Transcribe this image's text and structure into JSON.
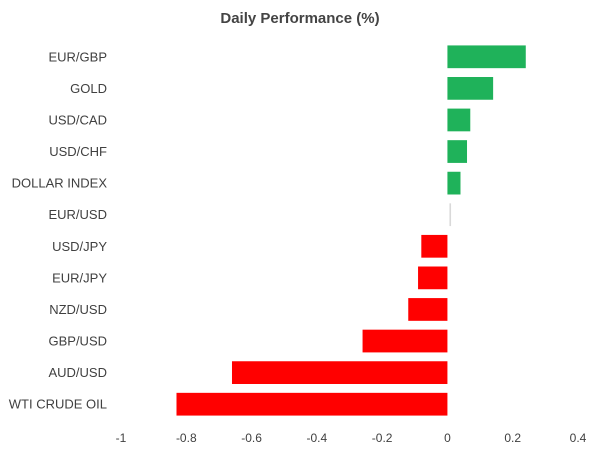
{
  "chart_data": {
    "type": "bar",
    "orientation": "horizontal",
    "title": "Daily Performance (%)",
    "xlabel": "",
    "ylabel": "",
    "xlim": [
      -1,
      0.4
    ],
    "xticks": [
      -1,
      -0.8,
      -0.6,
      -0.4,
      -0.2,
      0,
      0.2,
      0.4
    ],
    "xtick_labels": [
      "-1",
      "-0.8",
      "-0.6",
      "-0.4",
      "-0.2",
      "0",
      "0.2",
      "0.4"
    ],
    "grid": false,
    "legend": "none",
    "colors": {
      "positive": "#1fb25a",
      "negative": "#ff0000",
      "zero": "#d9d9d9"
    },
    "categories": [
      "EUR/GBP",
      "GOLD",
      "USD/CAD",
      "USD/CHF",
      "DOLLAR INDEX",
      "EUR/USD",
      "USD/JPY",
      "EUR/JPY",
      "NZD/USD",
      "GBP/USD",
      "AUD/USD",
      "WTI CRUDE OIL"
    ],
    "values": [
      0.24,
      0.14,
      0.07,
      0.06,
      0.04,
      0.005,
      -0.08,
      -0.09,
      -0.12,
      -0.26,
      -0.66,
      -0.83
    ]
  }
}
